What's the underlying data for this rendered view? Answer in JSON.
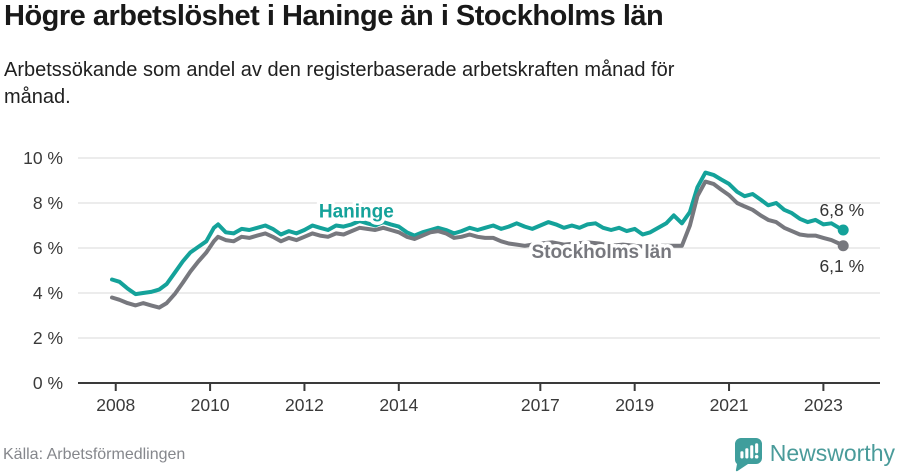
{
  "header": {
    "title": "Högre arbetslöshet i Haninge än i Stockholms län",
    "subtitle_lines": [
      "Arbetssökande som andel av den registerbaserade arbetskraften månad för",
      "månad."
    ]
  },
  "footer": {
    "source": "Källa: Arbetsförmedlingen",
    "brand": "Newsworthy"
  },
  "colors": {
    "haninge": "#14a29a",
    "stockholm": "#77787e",
    "grid": "#d9d9d9",
    "axis": "#3a3a3a",
    "tick_text": "#3a3a3a",
    "brand": "#4a9b9a"
  },
  "chart_data": {
    "type": "line",
    "title": "Högre arbetslöshet i Haninge än i Stockholms län",
    "subtitle": "Arbetssökande som andel av den registerbaserade arbetskraften månad för månad.",
    "xlabel": "",
    "ylabel": "",
    "y_unit": "%",
    "grid": true,
    "legend_position": "inline",
    "xlim": [
      2007.2,
      2024.2
    ],
    "ylim": [
      0,
      10
    ],
    "yticks": [
      {
        "value": 0,
        "label": "0 %"
      },
      {
        "value": 2,
        "label": "2 %"
      },
      {
        "value": 4,
        "label": "4 %"
      },
      {
        "value": 6,
        "label": "6 %"
      },
      {
        "value": 8,
        "label": "8 %"
      },
      {
        "value": 10,
        "label": "10 %"
      }
    ],
    "xticks": [
      {
        "value": 2008,
        "label": "2008"
      },
      {
        "value": 2010,
        "label": "2010"
      },
      {
        "value": 2012,
        "label": "2012"
      },
      {
        "value": 2014,
        "label": "2014"
      },
      {
        "value": 2017,
        "label": "2017"
      },
      {
        "value": 2019,
        "label": "2019"
      },
      {
        "value": 2021,
        "label": "2021"
      },
      {
        "value": 2023,
        "label": "2023"
      }
    ],
    "series": [
      {
        "name": "Haninge",
        "color": "#14a29a",
        "end_label": "6,8 %",
        "end_label_side": "above",
        "label_pos": {
          "x": 2013.1,
          "y": 7.35
        },
        "points": [
          [
            2007.92,
            4.6
          ],
          [
            2008.08,
            4.5
          ],
          [
            2008.25,
            4.2
          ],
          [
            2008.42,
            3.95
          ],
          [
            2008.58,
            4.0
          ],
          [
            2008.75,
            4.05
          ],
          [
            2008.92,
            4.15
          ],
          [
            2009.08,
            4.4
          ],
          [
            2009.25,
            4.9
          ],
          [
            2009.42,
            5.4
          ],
          [
            2009.58,
            5.8
          ],
          [
            2009.75,
            6.05
          ],
          [
            2009.92,
            6.3
          ],
          [
            2010.08,
            6.9
          ],
          [
            2010.17,
            7.05
          ],
          [
            2010.33,
            6.7
          ],
          [
            2010.5,
            6.65
          ],
          [
            2010.67,
            6.85
          ],
          [
            2010.83,
            6.8
          ],
          [
            2011.0,
            6.9
          ],
          [
            2011.17,
            7.0
          ],
          [
            2011.33,
            6.85
          ],
          [
            2011.5,
            6.6
          ],
          [
            2011.67,
            6.75
          ],
          [
            2011.83,
            6.65
          ],
          [
            2012.0,
            6.8
          ],
          [
            2012.17,
            7.0
          ],
          [
            2012.33,
            6.9
          ],
          [
            2012.5,
            6.8
          ],
          [
            2012.67,
            7.0
          ],
          [
            2012.83,
            6.95
          ],
          [
            2013.0,
            7.05
          ],
          [
            2013.17,
            7.2
          ],
          [
            2013.33,
            7.1
          ],
          [
            2013.5,
            7.0
          ],
          [
            2013.67,
            7.15
          ],
          [
            2013.83,
            7.05
          ],
          [
            2014.0,
            6.95
          ],
          [
            2014.17,
            6.7
          ],
          [
            2014.33,
            6.55
          ],
          [
            2014.5,
            6.7
          ],
          [
            2014.67,
            6.8
          ],
          [
            2014.83,
            6.9
          ],
          [
            2015.0,
            6.8
          ],
          [
            2015.17,
            6.65
          ],
          [
            2015.33,
            6.75
          ],
          [
            2015.5,
            6.9
          ],
          [
            2015.67,
            6.8
          ],
          [
            2015.83,
            6.9
          ],
          [
            2016.0,
            7.0
          ],
          [
            2016.17,
            6.85
          ],
          [
            2016.33,
            6.95
          ],
          [
            2016.5,
            7.1
          ],
          [
            2016.67,
            6.95
          ],
          [
            2016.83,
            6.85
          ],
          [
            2017.0,
            7.0
          ],
          [
            2017.17,
            7.15
          ],
          [
            2017.33,
            7.05
          ],
          [
            2017.5,
            6.9
          ],
          [
            2017.67,
            7.0
          ],
          [
            2017.83,
            6.9
          ],
          [
            2018.0,
            7.05
          ],
          [
            2018.17,
            7.1
          ],
          [
            2018.33,
            6.9
          ],
          [
            2018.5,
            6.8
          ],
          [
            2018.67,
            6.9
          ],
          [
            2018.83,
            6.75
          ],
          [
            2019.0,
            6.85
          ],
          [
            2019.17,
            6.6
          ],
          [
            2019.33,
            6.7
          ],
          [
            2019.5,
            6.9
          ],
          [
            2019.67,
            7.1
          ],
          [
            2019.83,
            7.45
          ],
          [
            2020.0,
            7.1
          ],
          [
            2020.17,
            7.6
          ],
          [
            2020.33,
            8.7
          ],
          [
            2020.5,
            9.35
          ],
          [
            2020.67,
            9.25
          ],
          [
            2020.83,
            9.05
          ],
          [
            2021.0,
            8.85
          ],
          [
            2021.17,
            8.5
          ],
          [
            2021.33,
            8.3
          ],
          [
            2021.5,
            8.4
          ],
          [
            2021.67,
            8.15
          ],
          [
            2021.83,
            7.9
          ],
          [
            2022.0,
            8.0
          ],
          [
            2022.17,
            7.7
          ],
          [
            2022.33,
            7.55
          ],
          [
            2022.5,
            7.3
          ],
          [
            2022.67,
            7.15
          ],
          [
            2022.83,
            7.25
          ],
          [
            2023.0,
            7.05
          ],
          [
            2023.17,
            7.1
          ],
          [
            2023.33,
            6.9
          ],
          [
            2023.42,
            6.8
          ]
        ]
      },
      {
        "name": "Stockholms län",
        "color": "#77787e",
        "end_label": "6,1 %",
        "end_label_side": "below",
        "label_pos": {
          "x": 2018.3,
          "y": 5.55
        },
        "points": [
          [
            2007.92,
            3.8
          ],
          [
            2008.08,
            3.7
          ],
          [
            2008.25,
            3.55
          ],
          [
            2008.42,
            3.45
          ],
          [
            2008.58,
            3.55
          ],
          [
            2008.75,
            3.45
          ],
          [
            2008.92,
            3.35
          ],
          [
            2009.08,
            3.55
          ],
          [
            2009.25,
            3.95
          ],
          [
            2009.42,
            4.45
          ],
          [
            2009.58,
            4.95
          ],
          [
            2009.75,
            5.4
          ],
          [
            2009.92,
            5.8
          ],
          [
            2010.08,
            6.3
          ],
          [
            2010.17,
            6.5
          ],
          [
            2010.33,
            6.35
          ],
          [
            2010.5,
            6.3
          ],
          [
            2010.67,
            6.5
          ],
          [
            2010.83,
            6.45
          ],
          [
            2011.0,
            6.55
          ],
          [
            2011.17,
            6.65
          ],
          [
            2011.33,
            6.5
          ],
          [
            2011.5,
            6.3
          ],
          [
            2011.67,
            6.45
          ],
          [
            2011.83,
            6.35
          ],
          [
            2012.0,
            6.5
          ],
          [
            2012.17,
            6.65
          ],
          [
            2012.33,
            6.55
          ],
          [
            2012.5,
            6.5
          ],
          [
            2012.67,
            6.65
          ],
          [
            2012.83,
            6.6
          ],
          [
            2013.0,
            6.75
          ],
          [
            2013.17,
            6.9
          ],
          [
            2013.33,
            6.85
          ],
          [
            2013.5,
            6.8
          ],
          [
            2013.67,
            6.9
          ],
          [
            2013.83,
            6.8
          ],
          [
            2014.0,
            6.7
          ],
          [
            2014.17,
            6.5
          ],
          [
            2014.33,
            6.4
          ],
          [
            2014.5,
            6.55
          ],
          [
            2014.67,
            6.7
          ],
          [
            2014.83,
            6.75
          ],
          [
            2015.0,
            6.65
          ],
          [
            2015.17,
            6.45
          ],
          [
            2015.33,
            6.5
          ],
          [
            2015.5,
            6.6
          ],
          [
            2015.67,
            6.5
          ],
          [
            2015.83,
            6.45
          ],
          [
            2016.0,
            6.45
          ],
          [
            2016.17,
            6.3
          ],
          [
            2016.33,
            6.2
          ],
          [
            2016.5,
            6.15
          ],
          [
            2016.67,
            6.1
          ],
          [
            2016.83,
            6.15
          ],
          [
            2017.0,
            6.2
          ],
          [
            2017.25,
            6.25
          ],
          [
            2017.5,
            6.15
          ],
          [
            2017.75,
            6.2
          ],
          [
            2018.0,
            6.25
          ],
          [
            2018.25,
            6.2
          ],
          [
            2018.5,
            6.1
          ],
          [
            2018.75,
            6.15
          ],
          [
            2019.0,
            6.1
          ],
          [
            2019.25,
            6.05
          ],
          [
            2019.5,
            6.1
          ],
          [
            2019.75,
            6.1
          ],
          [
            2020.0,
            6.1
          ],
          [
            2020.17,
            7.0
          ],
          [
            2020.33,
            8.3
          ],
          [
            2020.5,
            8.95
          ],
          [
            2020.67,
            8.85
          ],
          [
            2020.83,
            8.6
          ],
          [
            2021.0,
            8.35
          ],
          [
            2021.17,
            8.0
          ],
          [
            2021.33,
            7.85
          ],
          [
            2021.5,
            7.7
          ],
          [
            2021.67,
            7.45
          ],
          [
            2021.83,
            7.25
          ],
          [
            2022.0,
            7.15
          ],
          [
            2022.17,
            6.9
          ],
          [
            2022.33,
            6.75
          ],
          [
            2022.5,
            6.6
          ],
          [
            2022.67,
            6.55
          ],
          [
            2022.83,
            6.55
          ],
          [
            2023.0,
            6.45
          ],
          [
            2023.17,
            6.35
          ],
          [
            2023.33,
            6.2
          ],
          [
            2023.42,
            6.1
          ]
        ]
      }
    ]
  }
}
